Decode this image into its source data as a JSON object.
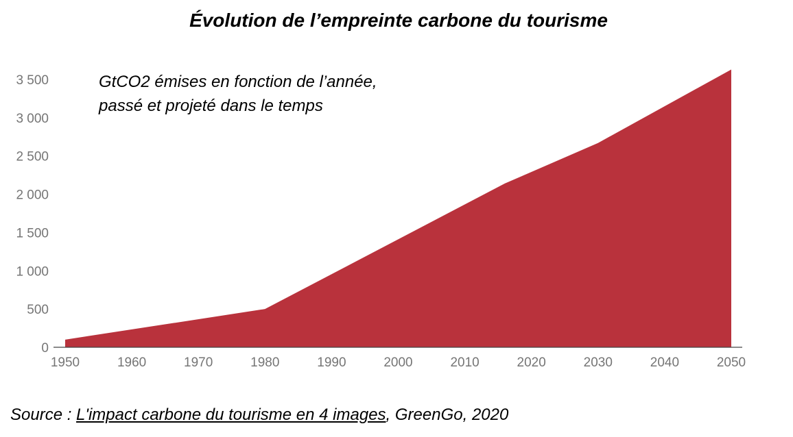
{
  "chart_data": {
    "type": "area",
    "title": "Évolution de l’empreinte carbone du tourisme",
    "annotation_lines": [
      "GtCO2 émises en fonction de l’année,",
      "passé et projeté dans le temps"
    ],
    "xlabel": "",
    "ylabel": "",
    "x_ticks": [
      1950,
      1960,
      1970,
      1980,
      1990,
      2000,
      2010,
      2020,
      2030,
      2040,
      2050
    ],
    "y_ticks": [
      0,
      500,
      1000,
      1500,
      2000,
      2500,
      3000,
      3500
    ],
    "y_tick_labels": [
      "0",
      "500",
      "1 000",
      "1 500",
      "2 000",
      "2 500",
      "3 000",
      "3 500"
    ],
    "xlim": [
      1950,
      2050
    ],
    "ylim": [
      0,
      3500
    ],
    "grid": false,
    "legend": "none",
    "fill_color": "#b9323c",
    "series": [
      {
        "x": [
          1950,
          1980,
          2016,
          2030,
          2050
        ],
        "values": [
          100,
          500,
          2140,
          2670,
          3630
        ]
      }
    ]
  },
  "source": {
    "prefix": "Source : ",
    "link_text": "L'impact carbone du tourisme en 4 images",
    "suffix": ", GreenGo, 2020"
  }
}
